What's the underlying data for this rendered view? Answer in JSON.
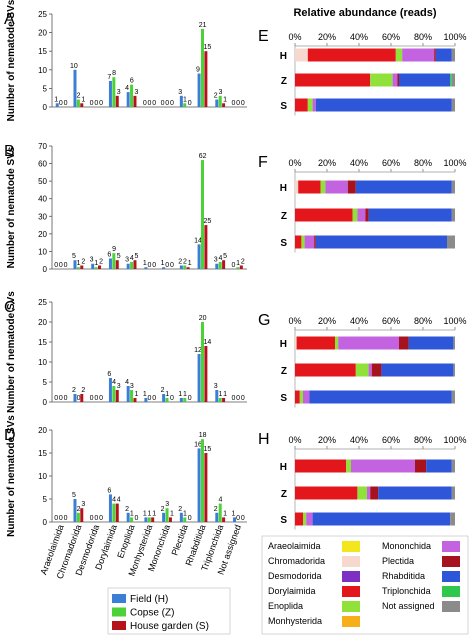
{
  "colors": {
    "Field (H)": "#3a7fd5",
    "Copse (Z)": "#4cd136",
    "House garden (S)": "#b5121b"
  },
  "chart_data": [
    {
      "panel": "A",
      "type": "bar",
      "ylabel": "Number of nematode SVs",
      "ylim": [
        0,
        25
      ],
      "yticks": [
        0,
        5,
        10,
        15,
        20,
        25
      ],
      "categories": [
        "Araeolaimida",
        "Chromadorida",
        "Desmodorida",
        "Dorylaimida",
        "Enoplida",
        "Monhysterida",
        "Mononchida",
        "Plectida",
        "Rhabditida",
        "Triplonchida",
        "Not assigned"
      ],
      "series": [
        {
          "name": "Field (H)",
          "values": [
            1,
            10,
            0,
            7,
            4,
            0,
            0,
            3,
            9,
            2,
            0
          ]
        },
        {
          "name": "Copse (Z)",
          "values": [
            0,
            2,
            0,
            8,
            6,
            0,
            0,
            1,
            21,
            3,
            0
          ]
        },
        {
          "name": "House garden (S)",
          "values": [
            0,
            1,
            0,
            3,
            3,
            0,
            0,
            0,
            15,
            1,
            0
          ]
        }
      ]
    },
    {
      "panel": "B",
      "type": "bar",
      "ylabel": "Number of nematode SVs",
      "ylim": [
        0,
        70
      ],
      "yticks": [
        0,
        10,
        20,
        30,
        40,
        50,
        60,
        70
      ],
      "categories": [
        "Araeolaimida",
        "Chromadorida",
        "Desmodorida",
        "Dorylaimida",
        "Enoplida",
        "Monhysterida",
        "Mononchida",
        "Plectida",
        "Rhabditida",
        "Triplonchida",
        "Not assigned"
      ],
      "series": [
        {
          "name": "Field (H)",
          "values": [
            0,
            5,
            3,
            6,
            3,
            1,
            1,
            2,
            14,
            3,
            0
          ]
        },
        {
          "name": "Copse (Z)",
          "values": [
            0,
            1,
            1,
            9,
            4,
            0,
            0,
            2,
            62,
            4,
            1
          ]
        },
        {
          "name": "House garden (S)",
          "values": [
            0,
            2,
            2,
            5,
            5,
            0,
            0,
            1,
            25,
            5,
            2
          ]
        }
      ]
    },
    {
      "panel": "C",
      "type": "bar",
      "ylabel": "Number of nematode SVs",
      "ylim": [
        0,
        25
      ],
      "yticks": [
        0,
        5,
        10,
        15,
        20,
        25
      ],
      "categories": [
        "Araeolaimida",
        "Chromadorida",
        "Desmodorida",
        "Dorylaimida",
        "Enoplida",
        "Monhysterida",
        "Mononchida",
        "Plectida",
        "Rhabditida",
        "Triplonchida",
        "Not assigned"
      ],
      "series": [
        {
          "name": "Field (H)",
          "values": [
            0,
            2,
            0,
            6,
            4,
            1,
            2,
            1,
            12,
            3,
            0
          ]
        },
        {
          "name": "Copse (Z)",
          "values": [
            0,
            0,
            0,
            4,
            3,
            0,
            1,
            1,
            20,
            1,
            0
          ]
        },
        {
          "name": "House garden (S)",
          "values": [
            0,
            2,
            0,
            3,
            1,
            0,
            0,
            0,
            14,
            1,
            0
          ]
        }
      ]
    },
    {
      "panel": "D",
      "type": "bar",
      "ylabel": "Number of nematode SVs",
      "ylim": [
        0,
        20
      ],
      "yticks": [
        0,
        5,
        10,
        15,
        20
      ],
      "categories": [
        "Araeolaimida",
        "Chromadorida",
        "Desmodorida",
        "Dorylaimida",
        "Enoplida",
        "Monhysterida",
        "Mononchida",
        "Plectida",
        "Rhabditida",
        "Triplonchida",
        "Not assigned"
      ],
      "series": [
        {
          "name": "Field (H)",
          "values": [
            0,
            5,
            0,
            6,
            2,
            1,
            2,
            2,
            16,
            2,
            1
          ]
        },
        {
          "name": "Copse (Z)",
          "values": [
            0,
            2,
            0,
            4,
            1,
            1,
            3,
            1,
            18,
            4,
            0
          ]
        },
        {
          "name": "House garden (S)",
          "values": [
            0,
            3,
            0,
            4,
            0,
            1,
            1,
            0,
            15,
            1,
            0
          ]
        }
      ]
    },
    {
      "panel": "E",
      "type": "stacked-bar",
      "title": "Relative abundance (reads)",
      "ticks": [
        "0%",
        "20%",
        "40%",
        "60%",
        "80%",
        "100%"
      ],
      "categories": [
        "H",
        "Z",
        "S"
      ],
      "series": [
        {
          "name": "Araeolaimida",
          "values": [
            0,
            0,
            0
          ]
        },
        {
          "name": "Chromadorida",
          "values": [
            8,
            0,
            0
          ]
        },
        {
          "name": "Desmodorida",
          "values": [
            0,
            0,
            0
          ]
        },
        {
          "name": "Dorylaimida",
          "values": [
            55,
            47,
            8
          ]
        },
        {
          "name": "Enoplida",
          "values": [
            4,
            14,
            3
          ]
        },
        {
          "name": "Monhysterida",
          "values": [
            0,
            0,
            0
          ]
        },
        {
          "name": "Mononchida",
          "values": [
            20,
            3,
            2
          ]
        },
        {
          "name": "Plectida",
          "values": [
            1,
            1,
            0
          ]
        },
        {
          "name": "Rhabditida",
          "values": [
            10,
            32,
            85
          ]
        },
        {
          "name": "Triplonchida",
          "values": [
            0,
            1,
            0
          ]
        },
        {
          "name": "Not assigned",
          "values": [
            2,
            2,
            2
          ]
        }
      ]
    },
    {
      "panel": "F",
      "type": "stacked-bar",
      "ticks": [
        "0%",
        "20%",
        "40%",
        "60%",
        "80%",
        "100%"
      ],
      "categories": [
        "H",
        "Z",
        "S"
      ],
      "series": [
        {
          "name": "Araeolaimida",
          "values": [
            0,
            0,
            0
          ]
        },
        {
          "name": "Chromadorida",
          "values": [
            2,
            0,
            0
          ]
        },
        {
          "name": "Desmodorida",
          "values": [
            0,
            0,
            0
          ]
        },
        {
          "name": "Dorylaimida",
          "values": [
            14,
            36,
            4
          ]
        },
        {
          "name": "Enoplida",
          "values": [
            3,
            3,
            2
          ]
        },
        {
          "name": "Monhysterida",
          "values": [
            0,
            0,
            0
          ]
        },
        {
          "name": "Mononchida",
          "values": [
            14,
            5,
            6
          ]
        },
        {
          "name": "Plectida",
          "values": [
            5,
            2,
            1
          ]
        },
        {
          "name": "Rhabditida",
          "values": [
            60,
            52,
            82
          ]
        },
        {
          "name": "Triplonchida",
          "values": [
            0,
            0,
            0
          ]
        },
        {
          "name": "Not assigned",
          "values": [
            2,
            2,
            5
          ]
        }
      ]
    },
    {
      "panel": "G",
      "type": "stacked-bar",
      "ticks": [
        "0%",
        "20%",
        "40%",
        "60%",
        "80%",
        "100%"
      ],
      "categories": [
        "H",
        "Z",
        "S"
      ],
      "series": [
        {
          "name": "Araeolaimida",
          "values": [
            0,
            0,
            0
          ]
        },
        {
          "name": "Chromadorida",
          "values": [
            1,
            0,
            0
          ]
        },
        {
          "name": "Desmodorida",
          "values": [
            0,
            0,
            0
          ]
        },
        {
          "name": "Dorylaimida",
          "values": [
            24,
            38,
            3
          ]
        },
        {
          "name": "Enoplida",
          "values": [
            2,
            8,
            2
          ]
        },
        {
          "name": "Monhysterida",
          "values": [
            0,
            0,
            0
          ]
        },
        {
          "name": "Mononchida",
          "values": [
            38,
            2,
            4
          ]
        },
        {
          "name": "Plectida",
          "values": [
            6,
            6,
            0
          ]
        },
        {
          "name": "Rhabditida",
          "values": [
            28,
            45,
            89
          ]
        },
        {
          "name": "Triplonchida",
          "values": [
            0,
            0,
            0
          ]
        },
        {
          "name": "Not assigned",
          "values": [
            1,
            1,
            2
          ]
        }
      ]
    },
    {
      "panel": "H",
      "type": "stacked-bar",
      "ticks": [
        "0%",
        "20%",
        "40%",
        "60%",
        "80%",
        "100%"
      ],
      "categories": [
        "H",
        "Z",
        "S"
      ],
      "series": [
        {
          "name": "Araeolaimida",
          "values": [
            0,
            0,
            0
          ]
        },
        {
          "name": "Chromadorida",
          "values": [
            0,
            0,
            0
          ]
        },
        {
          "name": "Desmodorida",
          "values": [
            0,
            0,
            0
          ]
        },
        {
          "name": "Dorylaimida",
          "values": [
            32,
            39,
            5
          ]
        },
        {
          "name": "Enoplida",
          "values": [
            3,
            6,
            2
          ]
        },
        {
          "name": "Monhysterida",
          "values": [
            0,
            0,
            0
          ]
        },
        {
          "name": "Mononchida",
          "values": [
            40,
            2,
            4
          ]
        },
        {
          "name": "Plectida",
          "values": [
            7,
            5,
            0
          ]
        },
        {
          "name": "Rhabditida",
          "values": [
            16,
            46,
            86
          ]
        },
        {
          "name": "Triplonchida",
          "values": [
            0,
            0,
            0
          ]
        },
        {
          "name": "Not assigned",
          "values": [
            2,
            2,
            3
          ]
        }
      ]
    }
  ],
  "legend_left": {
    "entries": [
      {
        "label": "Field (H)",
        "color": "#3a7fd5"
      },
      {
        "label": "Copse (Z)",
        "color": "#4cd136"
      },
      {
        "label": "House garden (S)",
        "color": "#b5121b"
      }
    ]
  },
  "legend_right": {
    "entries": [
      {
        "label": "Araeolaimida",
        "color": "#f3e61c"
      },
      {
        "label": "Chromadorida",
        "color": "#f7d8cf"
      },
      {
        "label": "Desmodorida",
        "color": "#7d30c2"
      },
      {
        "label": "Dorylaimida",
        "color": "#e3171b"
      },
      {
        "label": "Enoplida",
        "color": "#90e23a"
      },
      {
        "label": "Monhysterida",
        "color": "#f6ae1b"
      },
      {
        "label": "Mononchida",
        "color": "#c463e0"
      },
      {
        "label": "Plectida",
        "color": "#a6121d"
      },
      {
        "label": "Rhabditida",
        "color": "#2d56d8"
      },
      {
        "label": "Triplonchida",
        "color": "#2fc84d"
      },
      {
        "label": "Not assigned",
        "color": "#8b8b8b"
      }
    ]
  }
}
